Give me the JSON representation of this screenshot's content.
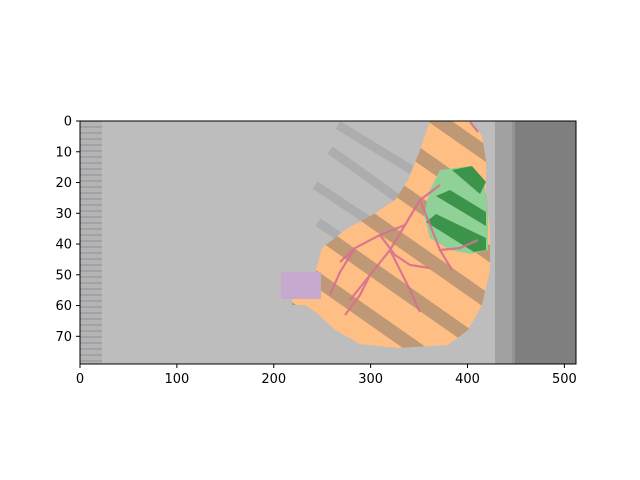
{
  "figure": {
    "kind": "image-plot (CT slice with segmentation overlay)",
    "background": "#ffffff",
    "image_extent": {
      "x": [
        0,
        512
      ],
      "y": [
        0,
        79
      ],
      "y_inverted": true
    },
    "colors": {
      "scan_gray": "#bdbdbd",
      "dark_edge": "#7f7f7f",
      "organ_orange": "#ffbe84",
      "organ_dark": "#b07c45",
      "lung_green": "#8fd196",
      "lung_dark_green": "#2e8a3e",
      "vessel_pink": "#d96f8f",
      "patch_purple": "#c7a8cf"
    },
    "x_axis": {
      "ticks": [
        {
          "value": 0,
          "label": "0"
        },
        {
          "value": 100,
          "label": "100"
        },
        {
          "value": 200,
          "label": "200"
        },
        {
          "value": 300,
          "label": "300"
        },
        {
          "value": 400,
          "label": "400"
        },
        {
          "value": 500,
          "label": "500"
        }
      ]
    },
    "y_axis": {
      "ticks": [
        {
          "value": 0,
          "label": "0"
        },
        {
          "value": 10,
          "label": "10"
        },
        {
          "value": 20,
          "label": "20"
        },
        {
          "value": 30,
          "label": "30"
        },
        {
          "value": 40,
          "label": "40"
        },
        {
          "value": 50,
          "label": "50"
        },
        {
          "value": 60,
          "label": "60"
        },
        {
          "value": 70,
          "label": "70"
        }
      ]
    }
  }
}
